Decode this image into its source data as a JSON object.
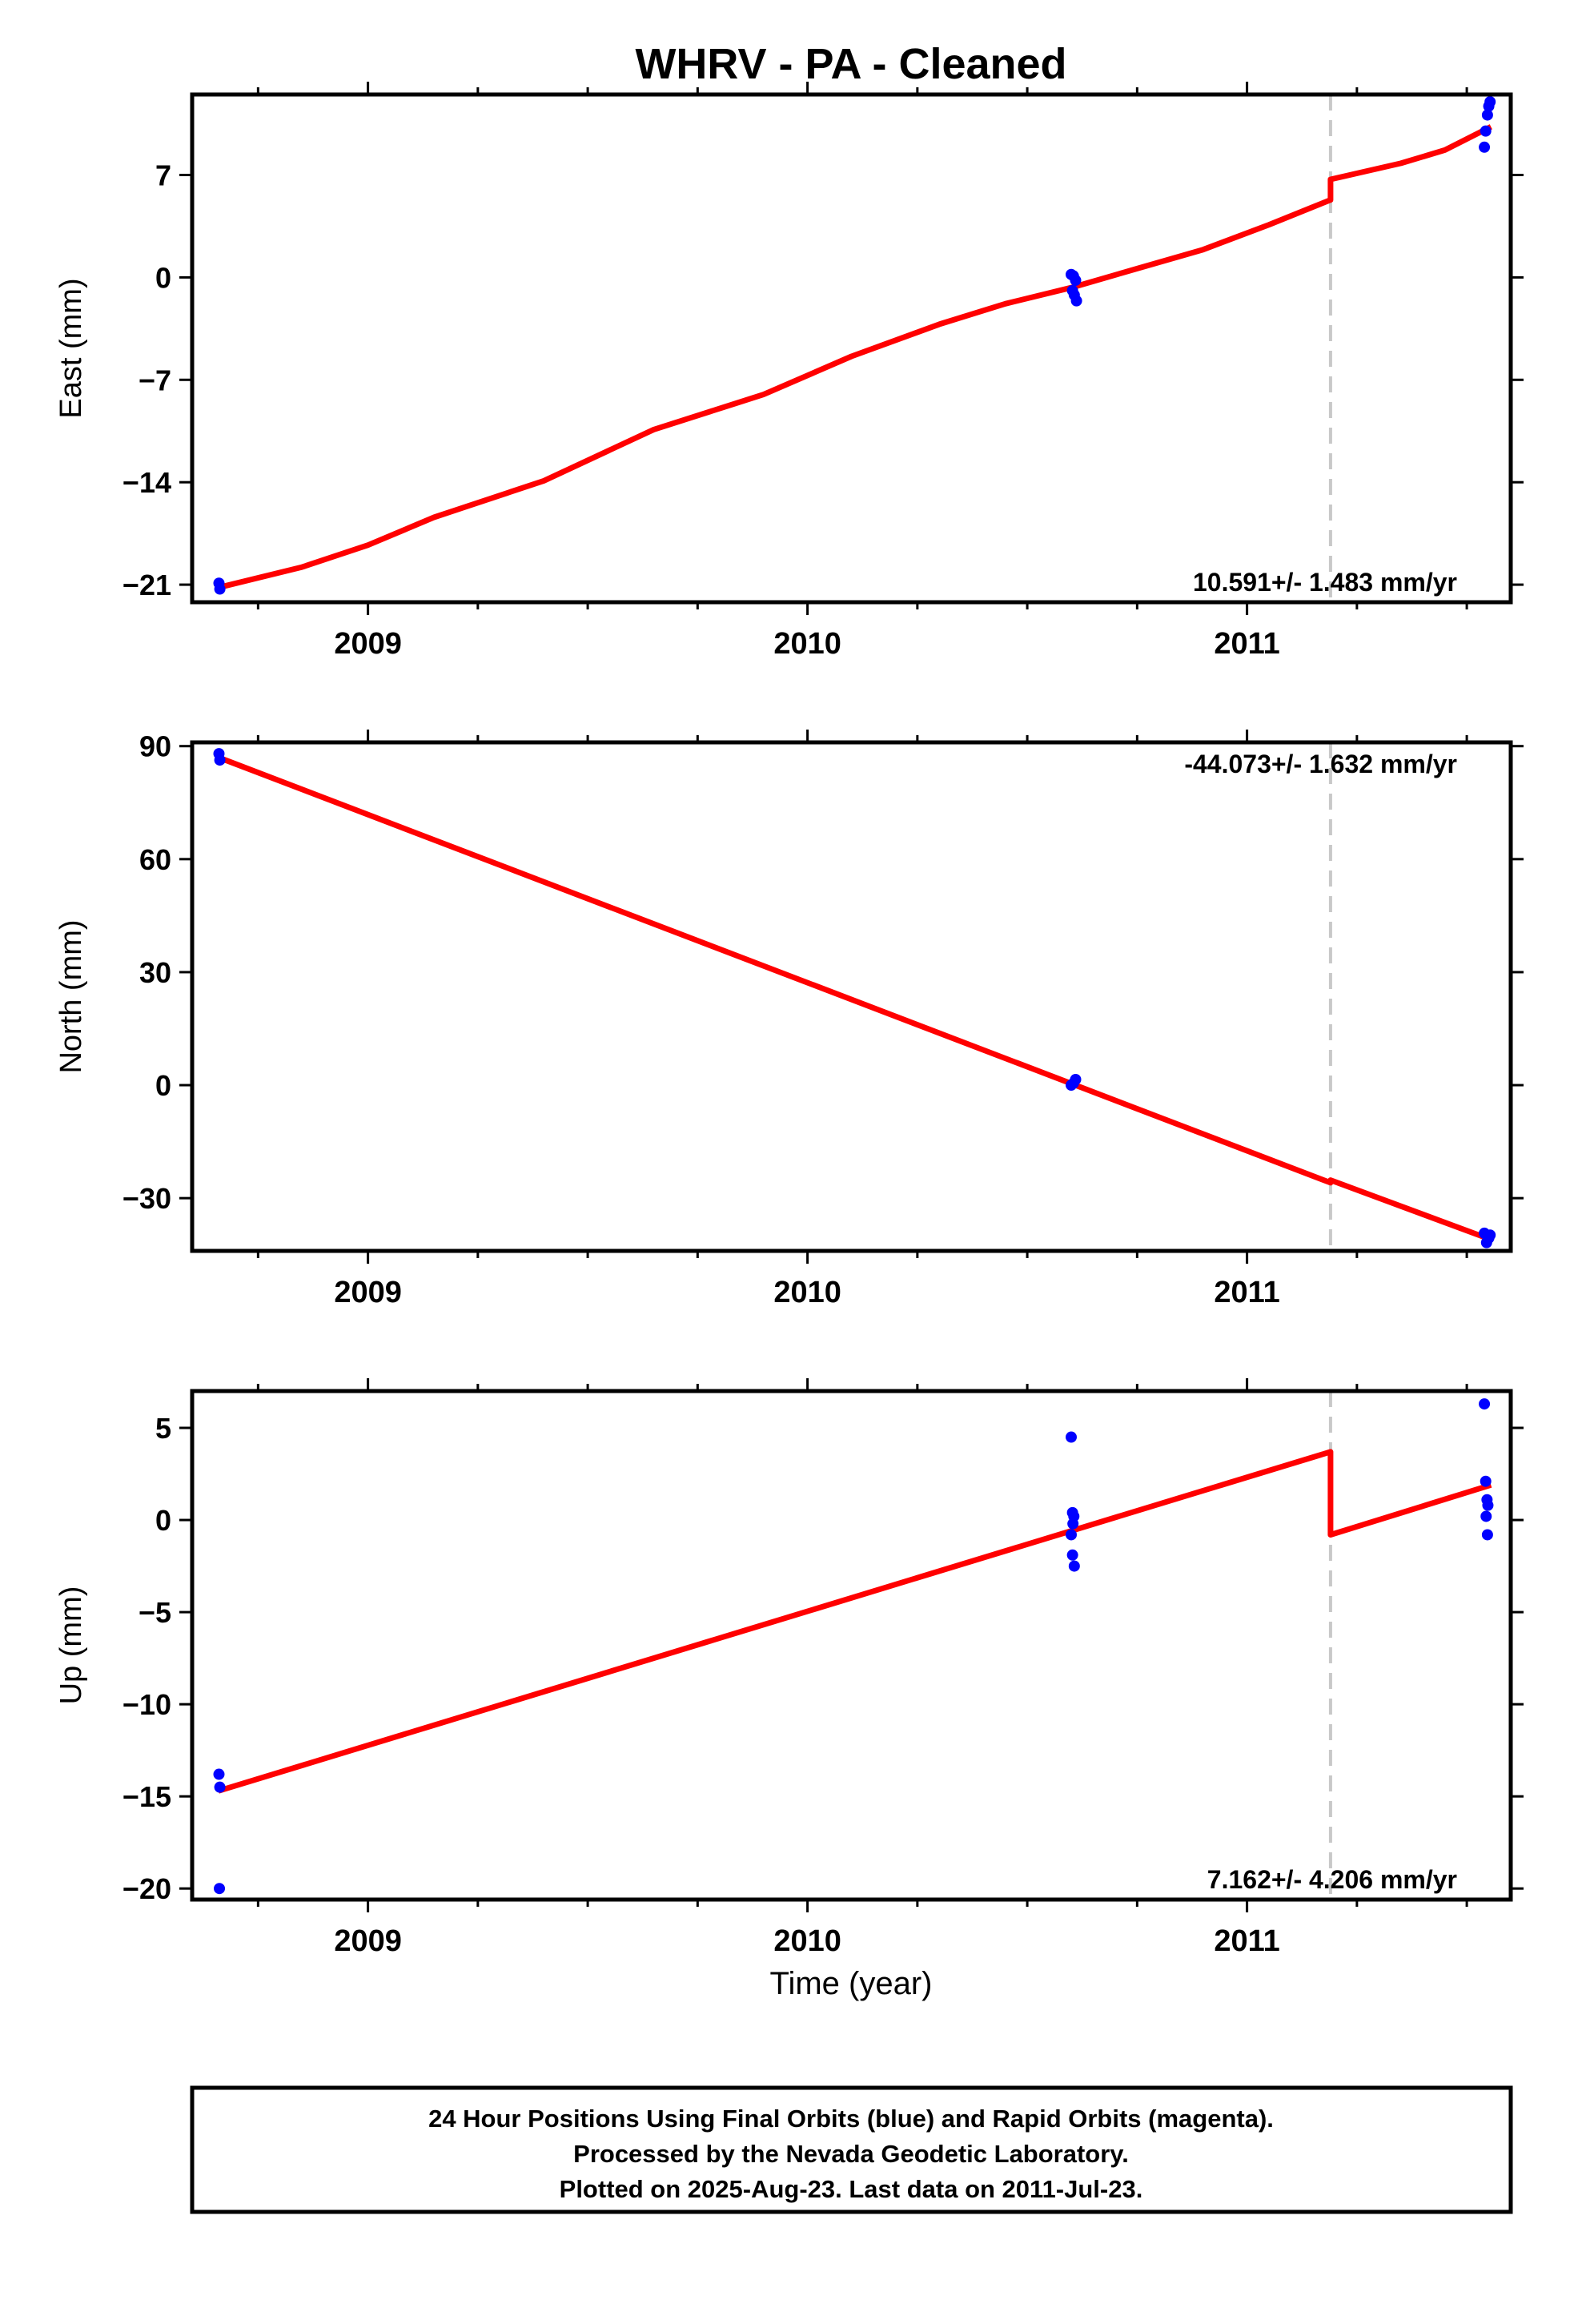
{
  "chart_data": {
    "title": "WHRV  - PA - Cleaned",
    "xlabel": "Time (year)",
    "xlim": [
      2008.6,
      2011.6
    ],
    "x_ticks": [
      2009,
      2010,
      2011
    ],
    "x_minor_step": 0.25,
    "colors": {
      "final_orbits": "#0000ff",
      "rapid_orbits": "#ff00ff",
      "model": "#ff0000",
      "offset_line": "#c8c8c8",
      "frame": "#000000"
    },
    "offset_epoch": 2011.19,
    "panels": [
      {
        "type": "scatter",
        "name": "east",
        "ylabel": "East (mm)",
        "ylim": [
          -22.2,
          12.5
        ],
        "y_ticks": [
          -21,
          -14,
          -7,
          0,
          7
        ],
        "rate_text": "10.591+/- 1.483 mm/yr",
        "rate_position": "bottom-right",
        "points": [
          {
            "x": 2008.661,
            "y": -20.9
          },
          {
            "x": 2008.663,
            "y": -21.3
          },
          {
            "x": 2010.6,
            "y": 0.2
          },
          {
            "x": 2010.605,
            "y": 0.1
          },
          {
            "x": 2010.61,
            "y": -0.2
          },
          {
            "x": 2010.603,
            "y": -0.9
          },
          {
            "x": 2010.607,
            "y": -1.2
          },
          {
            "x": 2010.612,
            "y": -1.6
          },
          {
            "x": 2011.54,
            "y": 8.9
          },
          {
            "x": 2011.543,
            "y": 10.0
          },
          {
            "x": 2011.547,
            "y": 11.1
          },
          {
            "x": 2011.55,
            "y": 11.7
          },
          {
            "x": 2011.553,
            "y": 12.0
          }
        ],
        "model": [
          {
            "x": 2008.66,
            "y": -21.2
          },
          {
            "x": 2008.85,
            "y": -19.8
          },
          {
            "x": 2009.0,
            "y": -18.3
          },
          {
            "x": 2009.15,
            "y": -16.4
          },
          {
            "x": 2009.4,
            "y": -13.9
          },
          {
            "x": 2009.65,
            "y": -10.4
          },
          {
            "x": 2009.9,
            "y": -8.0
          },
          {
            "x": 2010.1,
            "y": -5.4
          },
          {
            "x": 2010.3,
            "y": -3.2
          },
          {
            "x": 2010.45,
            "y": -1.8
          },
          {
            "x": 2010.6,
            "y": -0.7
          },
          {
            "x": 2010.75,
            "y": 0.6
          },
          {
            "x": 2010.9,
            "y": 1.9
          },
          {
            "x": 2011.05,
            "y": 3.6
          },
          {
            "x": 2011.19,
            "y": 5.3
          },
          {
            "x": 2011.19,
            "y": 6.7
          },
          {
            "x": 2011.35,
            "y": 7.8
          },
          {
            "x": 2011.45,
            "y": 8.7
          },
          {
            "x": 2011.555,
            "y": 10.3
          }
        ]
      },
      {
        "type": "scatter",
        "name": "north",
        "ylabel": "North (mm)",
        "ylim": [
          -44,
          91
        ],
        "y_ticks": [
          -30,
          0,
          30,
          60,
          90
        ],
        "rate_text": "-44.073+/- 1.632 mm/yr",
        "rate_position": "top-right",
        "points": [
          {
            "x": 2008.661,
            "y": 88.0
          },
          {
            "x": 2008.663,
            "y": 86.3
          },
          {
            "x": 2010.6,
            "y": 0.0
          },
          {
            "x": 2010.605,
            "y": 0.5
          },
          {
            "x": 2010.61,
            "y": 1.5
          },
          {
            "x": 2011.54,
            "y": -39.3
          },
          {
            "x": 2011.545,
            "y": -41.8
          },
          {
            "x": 2011.55,
            "y": -40.6
          },
          {
            "x": 2011.553,
            "y": -39.8
          }
        ],
        "model": [
          {
            "x": 2008.66,
            "y": 87.0
          },
          {
            "x": 2011.19,
            "y": -25.9
          },
          {
            "x": 2011.19,
            "y": -25.2
          },
          {
            "x": 2011.555,
            "y": -41.0
          }
        ]
      },
      {
        "type": "scatter",
        "name": "up",
        "ylabel": "Up (mm)",
        "ylim": [
          -20.6,
          7.0
        ],
        "y_ticks": [
          -20,
          -15,
          -10,
          -5,
          0,
          5
        ],
        "rate_text": "7.162+/- 4.206 mm/yr",
        "rate_position": "bottom-right",
        "points": [
          {
            "x": 2008.661,
            "y": -13.8
          },
          {
            "x": 2008.663,
            "y": -14.5
          },
          {
            "x": 2008.662,
            "y": -20.0
          },
          {
            "x": 2010.6,
            "y": 4.5
          },
          {
            "x": 2010.603,
            "y": 0.4
          },
          {
            "x": 2010.606,
            "y": 0.2
          },
          {
            "x": 2010.604,
            "y": -0.2
          },
          {
            "x": 2010.6,
            "y": -0.8
          },
          {
            "x": 2010.603,
            "y": -1.9
          },
          {
            "x": 2010.607,
            "y": -2.5
          },
          {
            "x": 2011.54,
            "y": 6.3
          },
          {
            "x": 2011.543,
            "y": 2.1
          },
          {
            "x": 2011.546,
            "y": 1.1
          },
          {
            "x": 2011.548,
            "y": 0.8
          },
          {
            "x": 2011.544,
            "y": 0.2
          },
          {
            "x": 2011.547,
            "y": -0.8
          }
        ],
        "model": [
          {
            "x": 2008.66,
            "y": -14.7
          },
          {
            "x": 2011.19,
            "y": 3.7
          },
          {
            "x": 2011.19,
            "y": -0.8
          },
          {
            "x": 2011.555,
            "y": 1.9
          }
        ]
      }
    ]
  },
  "footer": {
    "line1": "24 Hour Positions Using Final Orbits (blue) and Rapid Orbits (magenta).",
    "line2": "Processed by the Nevada Geodetic Laboratory.",
    "line3": "Plotted on 2025-Aug-23. Last data on 2011-Jul-23."
  }
}
